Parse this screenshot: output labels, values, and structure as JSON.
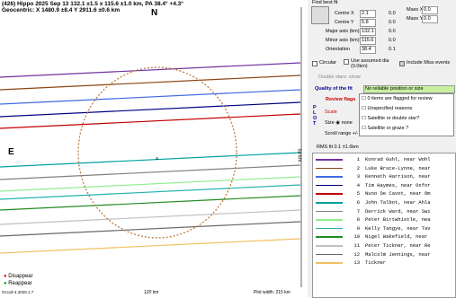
{
  "plot": {
    "title": "(426) Hippo 2025 Sep 13  132.1 ±1.5 x 115.6 ±1.0 km, PA 38.4° +4.3°",
    "subtitle": "Geocentric: X  1480.9 ±8.4  Y 2911.6 ±0.6 km",
    "north": "N",
    "east": "E",
    "center_label": "a",
    "side_scale": "50 km",
    "legend": [
      "Disappear",
      "Reappear"
    ],
    "footer_left": "Occult 4.2025.1.7",
    "footer_mid": "120 km",
    "footer_right": "Plot width: 215 km"
  },
  "fit": {
    "title": "Find best fit",
    "fields": [
      {
        "label": "Centre X",
        "value": "2.1",
        "delta": "0.0"
      },
      {
        "label": "Centre Y",
        "value": "5.8",
        "delta": "0.0"
      },
      {
        "label": "Major axis (km)",
        "value": "132.1",
        "delta": "0.0"
      },
      {
        "label": "Minor axis (km)",
        "value": "115.6",
        "delta": "0.0"
      },
      {
        "label": "Orientation",
        "value": "38.4",
        "delta": "0.1"
      }
    ],
    "mass": [
      {
        "label": "Mass X",
        "value": "0.0"
      },
      {
        "label": "Mass Y",
        "value": "0.0"
      }
    ],
    "checks": [
      "Circular",
      "Use assumed dia (0.0km)",
      "Include Miss events"
    ],
    "double": "Double stars: show",
    "quality_label": "Quality of the fit",
    "quality_value": "No reliable position or size",
    "review": "Review flags",
    "review_options": [
      "0 items are flagged for review",
      "Unspecified reasons",
      "Satellite or double star?",
      "Satellite or graze ?"
    ],
    "scale": "Scale",
    "size": "Size",
    "size_opt": "none",
    "scroll": "Scroll range +/-",
    "plot_letters": "P L O T",
    "rms": "RMS fit 0.1 ±1.6km"
  },
  "observers": [
    {
      "num": "1",
      "text": "Konrad Guhl, near Wohl",
      "color": "#7030a0"
    },
    {
      "num": "2",
      "text": "Luke Bruce-Lynne, near",
      "color": "#8b4513"
    },
    {
      "num": "3",
      "text": "Kenneth Harrison, near",
      "color": "#4169e1"
    },
    {
      "num": "4",
      "text": "Tim Haymes, near Oxfor",
      "color": "#000080"
    },
    {
      "num": "5",
      "text": "Nuno De Cavot, near Om",
      "color": "#c00000"
    },
    {
      "num": "6",
      "text": "John Talbot, near Ahla",
      "color": "#00a0a0"
    },
    {
      "num": "7",
      "text": "Derrick Ward, near Swi",
      "color": "#808080"
    },
    {
      "num": "8",
      "text": "Peter Birtwhistle, nea",
      "color": "#90ee90"
    },
    {
      "num": "9",
      "text": "Kelly Tangye, near Tav",
      "color": "#20b2aa"
    },
    {
      "num": "10",
      "text": "Nigel Wakefield, near",
      "color": "#228b22"
    },
    {
      "num": "11",
      "text": "Peter Tickner, near Re",
      "color": "#c0c0c0"
    },
    {
      "num": "12",
      "text": "Malcolm Jennings, near",
      "color": "#696969"
    },
    {
      "num": "13",
      "text": "Tickner",
      "color": "#f0c060"
    }
  ]
}
